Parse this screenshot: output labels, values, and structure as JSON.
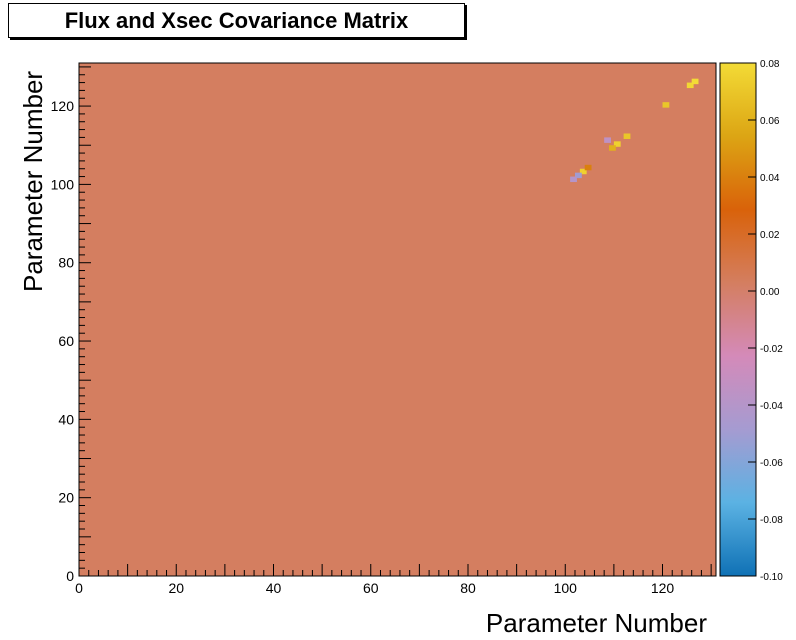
{
  "chart_data": {
    "type": "heatmap",
    "title": "Flux and Xsec Covariance Matrix",
    "xlabel": "Parameter Number",
    "ylabel": "Parameter Number",
    "n_bins": 131,
    "xlim": [
      0,
      131
    ],
    "ylim": [
      0,
      131
    ],
    "x_ticks": [
      "0",
      "20",
      "40",
      "60",
      "80",
      "100",
      "120"
    ],
    "y_ticks": [
      "0",
      "20",
      "40",
      "60",
      "80",
      "100",
      "120"
    ],
    "z_range": [
      -0.1,
      0.08
    ],
    "colorbar_ticks": [
      "0.08",
      "0.06",
      "0.04",
      "0.02",
      "0.00",
      "-0.02",
      "-0.04",
      "-0.06",
      "-0.08",
      "-0.10"
    ],
    "colormap": [
      "#0f71b5",
      "#5bb2e3",
      "#a59bd1",
      "#d48ab9",
      "#d47e60",
      "#d9620a",
      "#dca514",
      "#f3db36"
    ],
    "background_value": 0.003,
    "notable_values": [
      {
        "x": 125,
        "y": 125,
        "value": 0.078
      },
      {
        "x": 126,
        "y": 126,
        "value": 0.08
      },
      {
        "x": 110,
        "y": 110,
        "value": 0.075
      },
      {
        "x": 112,
        "y": 112,
        "value": 0.07
      },
      {
        "x": 109,
        "y": 109,
        "value": 0.06
      },
      {
        "x": 103,
        "y": 103,
        "value": 0.075
      },
      {
        "x": 102,
        "y": 102,
        "value": -0.05
      },
      {
        "x": 101,
        "y": 101,
        "value": -0.04
      },
      {
        "x": 108,
        "y": 111,
        "value": -0.035
      },
      {
        "x": 104,
        "y": 104,
        "value": 0.04
      },
      {
        "x": 120,
        "y": 120,
        "value": 0.07
      }
    ]
  }
}
